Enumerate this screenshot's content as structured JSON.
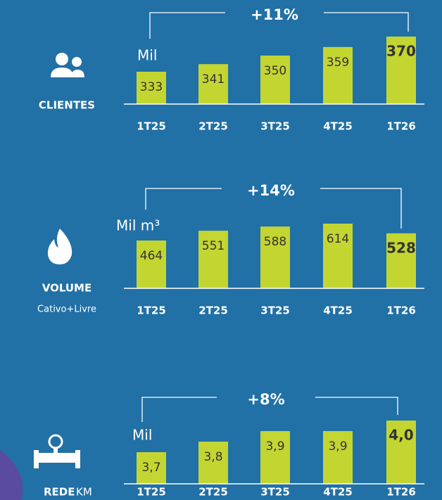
{
  "chart_data": [
    {
      "type": "bar",
      "label": "CLIENTES",
      "unit": "Mil",
      "growth": "+11%",
      "categories": [
        "1T25",
        "2T25",
        "3T25",
        "4T25",
        "1T26"
      ],
      "values": [
        333,
        341,
        350,
        359,
        370
      ],
      "color": "#c3d531"
    },
    {
      "type": "bar",
      "label": "VOLUME",
      "sublabel": "Cativo+Livre",
      "unit": "Mil m³",
      "growth": "+14%",
      "categories": [
        "1T25",
        "2T25",
        "3T25",
        "4T25",
        "1T26"
      ],
      "values": [
        464,
        551,
        588,
        614,
        528
      ],
      "color": "#c3d531"
    },
    {
      "type": "bar",
      "label": "REDE",
      "sublabel": "KM",
      "unit": "Mil",
      "growth": "+8%",
      "categories": [
        "1T25",
        "2T25",
        "3T25",
        "4T25",
        "1T26"
      ],
      "values": [
        3.7,
        3.8,
        3.9,
        3.9,
        4.0
      ],
      "value_labels": [
        "3,7",
        "3,8",
        "3,9",
        "3,9",
        "4,0"
      ],
      "color": "#c3d531"
    }
  ]
}
